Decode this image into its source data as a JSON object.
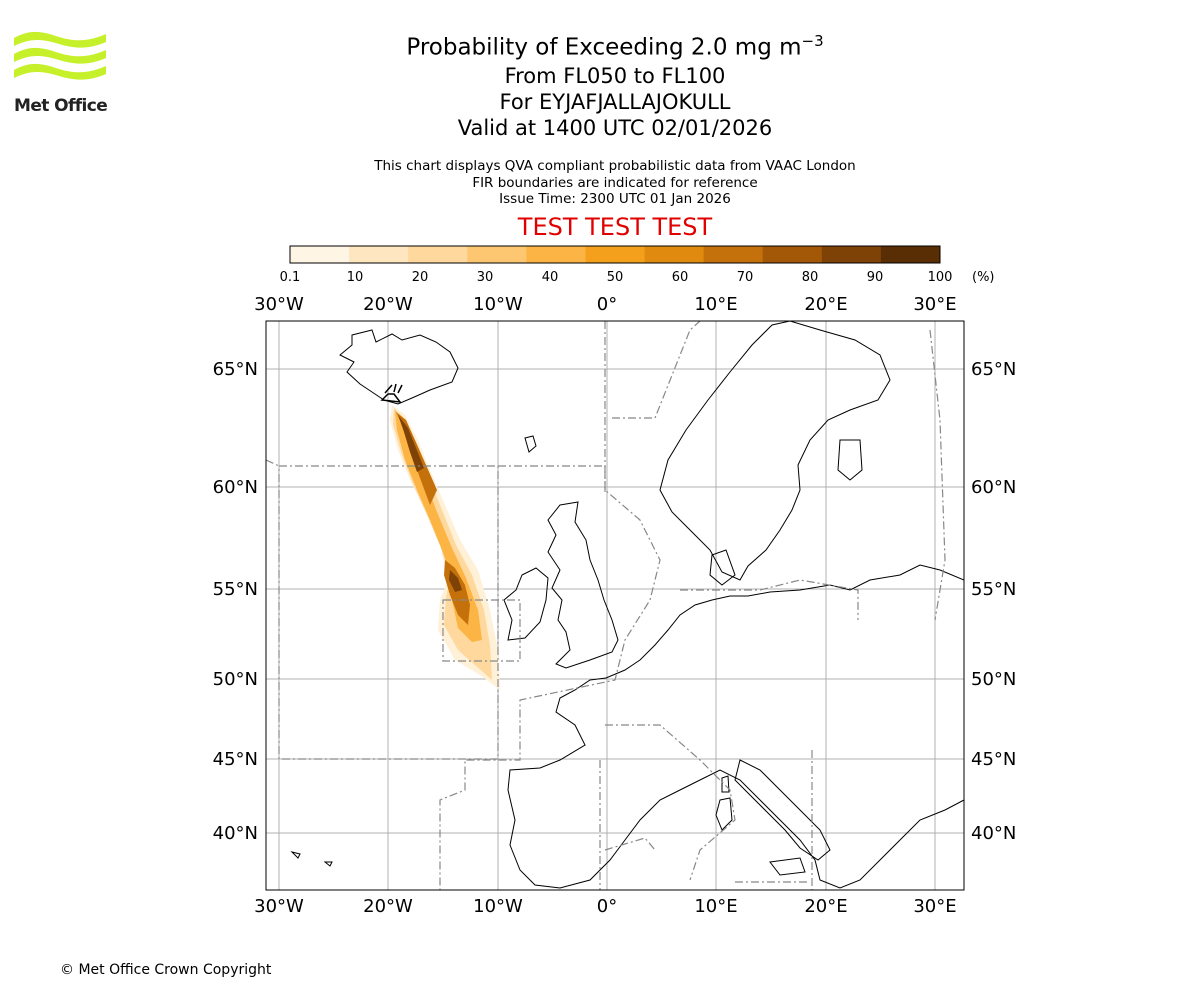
{
  "logo": {
    "name": "Met Office",
    "accent": "#c6f02a"
  },
  "title": {
    "line1": "Probability of Exceeding 2.0 mg m",
    "line1_exp": "−3",
    "line2": "From FL050 to FL100",
    "line3": "For EYJAFJALLAJOKULL",
    "line4": "Valid at 1400 UTC 02/01/2026"
  },
  "notes": {
    "line1": "This chart displays QVA compliant probabilistic data from VAAC London",
    "line2": "FIR boundaries are indicated for reference",
    "line3": "Issue Time: 2300 UTC 01 Jan 2026"
  },
  "banner": {
    "text": "TEST TEST TEST",
    "color": "#e00000"
  },
  "colorbar": {
    "ticks": [
      "0.1",
      "10",
      "20",
      "30",
      "40",
      "50",
      "60",
      "70",
      "80",
      "90",
      "100"
    ],
    "unit": "(%)",
    "colors": [
      "#fff5e4",
      "#fee6c1",
      "#fed89d",
      "#fdc772",
      "#fcb544",
      "#f5a01c",
      "#e08a10",
      "#c4700b",
      "#a35808",
      "#7e4106",
      "#5a2e05"
    ]
  },
  "map": {
    "lon_labels": [
      "30°W",
      "20°W",
      "10°W",
      "0°",
      "10°E",
      "20°E",
      "30°E"
    ],
    "lat_labels": [
      "65°N",
      "60°N",
      "55°N",
      "50°N",
      "45°N",
      "40°N"
    ],
    "volcano": "EYJAFJALLAJOKULL"
  },
  "footer": {
    "copyright": "© Met Office Crown Copyright"
  }
}
